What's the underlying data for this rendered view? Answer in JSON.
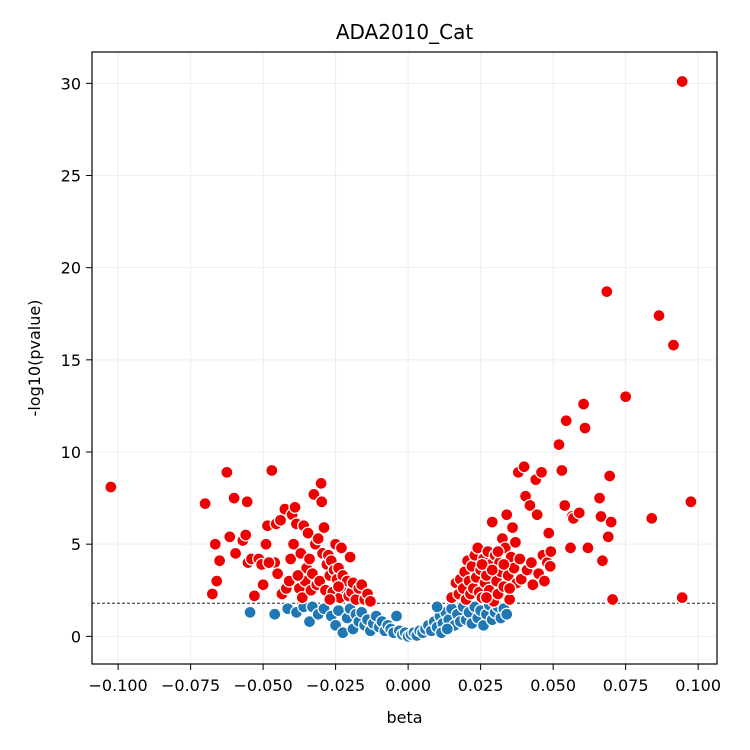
{
  "chart_data": {
    "type": "scatter",
    "title": "ADA2010_Cat",
    "xlabel": "beta",
    "ylabel": "-log10(pvalue)",
    "xlim": [
      -0.109,
      0.1065
    ],
    "ylim": [
      -1.5,
      31.7
    ],
    "xticks": [
      -0.1,
      -0.075,
      -0.05,
      -0.025,
      0.0,
      0.025,
      0.05,
      0.075,
      0.1
    ],
    "xtick_labels": [
      "−0.100",
      "−0.075",
      "−0.050",
      "−0.025",
      "0.000",
      "0.025",
      "0.050",
      "0.075",
      "0.100"
    ],
    "yticks": [
      0,
      5,
      10,
      15,
      20,
      25,
      30
    ],
    "ytick_labels": [
      "0",
      "5",
      "10",
      "15",
      "20",
      "25",
      "30"
    ],
    "grid": true,
    "threshold_line": 1.8,
    "colors": {
      "significant": "#ee0000",
      "not_significant": "#1f77b4",
      "marker_edge": "#ffffff",
      "threshold": "#000000",
      "grid": "#eeeeee"
    },
    "series": [
      {
        "group": "significant",
        "points": [
          [
            -0.1025,
            8.1
          ],
          [
            -0.07,
            7.2
          ],
          [
            -0.0675,
            2.3
          ],
          [
            -0.0665,
            5.0
          ],
          [
            -0.066,
            3.0
          ],
          [
            -0.065,
            4.1
          ],
          [
            -0.0625,
            8.9
          ],
          [
            -0.0615,
            5.4
          ],
          [
            -0.06,
            7.5
          ],
          [
            -0.0595,
            4.5
          ],
          [
            -0.057,
            5.2
          ],
          [
            -0.056,
            5.5
          ],
          [
            -0.0555,
            7.3
          ],
          [
            -0.0552,
            4.0
          ],
          [
            -0.054,
            4.2
          ],
          [
            -0.053,
            2.2
          ],
          [
            -0.0515,
            4.2
          ],
          [
            -0.0505,
            3.9
          ],
          [
            -0.05,
            2.8
          ],
          [
            -0.049,
            5.0
          ],
          [
            -0.0485,
            6.0
          ],
          [
            -0.047,
            9.0
          ],
          [
            -0.046,
            4.0
          ],
          [
            -0.0455,
            6.1
          ],
          [
            -0.045,
            3.4
          ],
          [
            -0.044,
            6.3
          ],
          [
            -0.0435,
            2.3
          ],
          [
            -0.0425,
            6.9
          ],
          [
            -0.042,
            2.6
          ],
          [
            -0.0405,
            4.2
          ],
          [
            -0.04,
            6.6
          ],
          [
            -0.0395,
            5.0
          ],
          [
            -0.039,
            7.0
          ],
          [
            -0.0385,
            6.1
          ],
          [
            -0.0375,
            2.6
          ],
          [
            -0.037,
            4.5
          ],
          [
            -0.0365,
            2.1
          ],
          [
            -0.036,
            6.0
          ],
          [
            -0.0355,
            3.0
          ],
          [
            -0.035,
            3.7
          ],
          [
            -0.0345,
            5.6
          ],
          [
            -0.034,
            4.2
          ],
          [
            -0.0335,
            2.5
          ],
          [
            -0.033,
            3.4
          ],
          [
            -0.0325,
            7.7
          ],
          [
            -0.032,
            5.0
          ],
          [
            -0.0315,
            2.8
          ],
          [
            -0.031,
            5.3
          ],
          [
            -0.0305,
            3.0
          ],
          [
            -0.03,
            8.3
          ],
          [
            -0.0298,
            7.3
          ],
          [
            -0.0295,
            4.5
          ],
          [
            -0.029,
            5.9
          ],
          [
            -0.0285,
            2.5
          ],
          [
            -0.028,
            3.9
          ],
          [
            -0.0275,
            4.4
          ],
          [
            -0.027,
            3.3
          ],
          [
            -0.0265,
            4.1
          ],
          [
            -0.026,
            2.4
          ],
          [
            -0.0255,
            3.6
          ],
          [
            -0.025,
            5.0
          ],
          [
            -0.0245,
            3.1
          ],
          [
            -0.024,
            3.7
          ],
          [
            -0.0235,
            2.1
          ],
          [
            -0.023,
            4.8
          ],
          [
            -0.0225,
            3.3
          ],
          [
            -0.022,
            2.6
          ],
          [
            -0.021,
            3.0
          ],
          [
            -0.0205,
            2.2
          ],
          [
            -0.02,
            4.3
          ],
          [
            -0.0195,
            2.4
          ],
          [
            -0.019,
            2.9
          ],
          [
            -0.018,
            2.0
          ],
          [
            -0.017,
            2.6
          ],
          [
            -0.016,
            2.8
          ],
          [
            -0.015,
            2.0
          ],
          [
            -0.014,
            2.3
          ],
          [
            -0.013,
            1.9
          ],
          [
            -0.048,
            4.0
          ],
          [
            -0.041,
            3.0
          ],
          [
            -0.038,
            3.3
          ],
          [
            -0.027,
            2.0
          ],
          [
            -0.024,
            2.7
          ],
          [
            0.015,
            2.1
          ],
          [
            0.0165,
            2.9
          ],
          [
            0.0175,
            2.3
          ],
          [
            0.018,
            3.1
          ],
          [
            0.019,
            2.6
          ],
          [
            0.0195,
            3.5
          ],
          [
            0.02,
            2.0
          ],
          [
            0.0205,
            4.1
          ],
          [
            0.021,
            3.0
          ],
          [
            0.0215,
            2.3
          ],
          [
            0.022,
            3.8
          ],
          [
            0.0225,
            2.6
          ],
          [
            0.023,
            4.4
          ],
          [
            0.0235,
            3.2
          ],
          [
            0.024,
            4.8
          ],
          [
            0.0245,
            2.4
          ],
          [
            0.025,
            3.6
          ],
          [
            0.0255,
            2.1
          ],
          [
            0.026,
            4.2
          ],
          [
            0.0265,
            2.9
          ],
          [
            0.027,
            3.3
          ],
          [
            0.0275,
            4.6
          ],
          [
            0.028,
            2.5
          ],
          [
            0.0285,
            3.9
          ],
          [
            0.029,
            6.2
          ],
          [
            0.0295,
            1.9
          ],
          [
            0.03,
            4.4
          ],
          [
            0.0305,
            3.0
          ],
          [
            0.031,
            2.3
          ],
          [
            0.0315,
            4.0
          ],
          [
            0.032,
            3.5
          ],
          [
            0.0325,
            5.3
          ],
          [
            0.033,
            2.7
          ],
          [
            0.0335,
            4.8
          ],
          [
            0.034,
            6.6
          ],
          [
            0.0345,
            3.3
          ],
          [
            0.035,
            2.0
          ],
          [
            0.0355,
            4.3
          ],
          [
            0.036,
            5.9
          ],
          [
            0.0365,
            3.7
          ],
          [
            0.037,
            5.1
          ],
          [
            0.0375,
            2.9
          ],
          [
            0.038,
            8.9
          ],
          [
            0.0385,
            4.2
          ],
          [
            0.039,
            3.1
          ],
          [
            0.04,
            9.2
          ],
          [
            0.0405,
            7.6
          ],
          [
            0.041,
            3.6
          ],
          [
            0.042,
            7.1
          ],
          [
            0.0425,
            4.0
          ],
          [
            0.043,
            2.8
          ],
          [
            0.044,
            8.5
          ],
          [
            0.0445,
            6.6
          ],
          [
            0.045,
            3.4
          ],
          [
            0.046,
            8.9
          ],
          [
            0.0465,
            4.4
          ],
          [
            0.047,
            3.0
          ],
          [
            0.048,
            4.0
          ],
          [
            0.0485,
            5.6
          ],
          [
            0.049,
            3.8
          ],
          [
            0.0492,
            4.6
          ],
          [
            0.052,
            10.4
          ],
          [
            0.053,
            9.0
          ],
          [
            0.054,
            7.1
          ],
          [
            0.0545,
            11.7
          ],
          [
            0.056,
            4.8
          ],
          [
            0.0565,
            6.5
          ],
          [
            0.057,
            6.4
          ],
          [
            0.059,
            6.7
          ],
          [
            0.0605,
            12.6
          ],
          [
            0.061,
            11.3
          ],
          [
            0.062,
            4.8
          ],
          [
            0.066,
            7.5
          ],
          [
            0.0665,
            6.5
          ],
          [
            0.067,
            4.1
          ],
          [
            0.0685,
            18.7
          ],
          [
            0.069,
            5.4
          ],
          [
            0.0695,
            8.7
          ],
          [
            0.07,
            6.2
          ],
          [
            0.0705,
            2.0
          ],
          [
            0.075,
            13.0
          ],
          [
            0.084,
            6.4
          ],
          [
            0.0865,
            17.4
          ],
          [
            0.0915,
            15.8
          ],
          [
            0.0945,
            30.1
          ],
          [
            0.0945,
            2.1
          ],
          [
            0.0975,
            7.3
          ],
          [
            0.0255,
            3.9
          ],
          [
            0.027,
            2.1
          ],
          [
            0.029,
            3.6
          ],
          [
            0.031,
            4.6
          ],
          [
            0.033,
            3.9
          ],
          [
            0.035,
            2.6
          ]
        ]
      },
      {
        "group": "not_significant",
        "points": [
          [
            -0.0545,
            1.3
          ],
          [
            -0.046,
            1.2
          ],
          [
            -0.0415,
            1.5
          ],
          [
            -0.0385,
            1.3
          ],
          [
            -0.036,
            1.6
          ],
          [
            -0.034,
            0.8
          ],
          [
            -0.033,
            1.6
          ],
          [
            -0.031,
            1.2
          ],
          [
            -0.029,
            1.5
          ],
          [
            -0.0265,
            1.1
          ],
          [
            -0.025,
            0.6
          ],
          [
            -0.024,
            1.4
          ],
          [
            -0.0225,
            0.2
          ],
          [
            -0.021,
            1.0
          ],
          [
            -0.02,
            1.5
          ],
          [
            -0.019,
            0.4
          ],
          [
            -0.018,
            1.2
          ],
          [
            -0.017,
            0.8
          ],
          [
            -0.016,
            1.3
          ],
          [
            -0.015,
            0.6
          ],
          [
            -0.014,
            0.9
          ],
          [
            -0.013,
            0.3
          ],
          [
            -0.012,
            0.7
          ],
          [
            -0.011,
            1.1
          ],
          [
            -0.01,
            0.5
          ],
          [
            -0.009,
            0.8
          ],
          [
            -0.008,
            0.3
          ],
          [
            -0.007,
            0.6
          ],
          [
            -0.006,
            0.4
          ],
          [
            -0.005,
            0.2
          ],
          [
            -0.004,
            1.1
          ],
          [
            -0.003,
            0.3
          ],
          [
            -0.002,
            0.1
          ],
          [
            -0.001,
            0.2
          ],
          [
            0.0,
            0.0
          ],
          [
            0.001,
            0.1
          ],
          [
            0.002,
            0.2
          ],
          [
            0.003,
            0.05
          ],
          [
            0.004,
            0.3
          ],
          [
            0.005,
            0.2
          ],
          [
            0.006,
            0.4
          ],
          [
            0.007,
            0.6
          ],
          [
            0.008,
            0.3
          ],
          [
            0.009,
            0.8
          ],
          [
            0.01,
            0.5
          ],
          [
            0.011,
            1.1
          ],
          [
            0.012,
            0.7
          ],
          [
            0.013,
            1.3
          ],
          [
            0.014,
            0.9
          ],
          [
            0.015,
            1.5
          ],
          [
            0.016,
            0.6
          ],
          [
            0.017,
            1.2
          ],
          [
            0.018,
            0.8
          ],
          [
            0.019,
            1.6
          ],
          [
            0.02,
            0.9
          ],
          [
            0.021,
            1.3
          ],
          [
            0.022,
            0.7
          ],
          [
            0.023,
            1.6
          ],
          [
            0.024,
            1.0
          ],
          [
            0.025,
            1.4
          ],
          [
            0.026,
            0.6
          ],
          [
            0.027,
            1.2
          ],
          [
            0.028,
            1.7
          ],
          [
            0.029,
            0.9
          ],
          [
            0.03,
            1.3
          ],
          [
            0.031,
            1.6
          ],
          [
            0.032,
            1.0
          ],
          [
            0.033,
            1.5
          ],
          [
            0.034,
            1.2
          ],
          [
            0.01,
            1.6
          ],
          [
            0.0115,
            0.2
          ],
          [
            0.0135,
            0.4
          ]
        ]
      }
    ]
  }
}
